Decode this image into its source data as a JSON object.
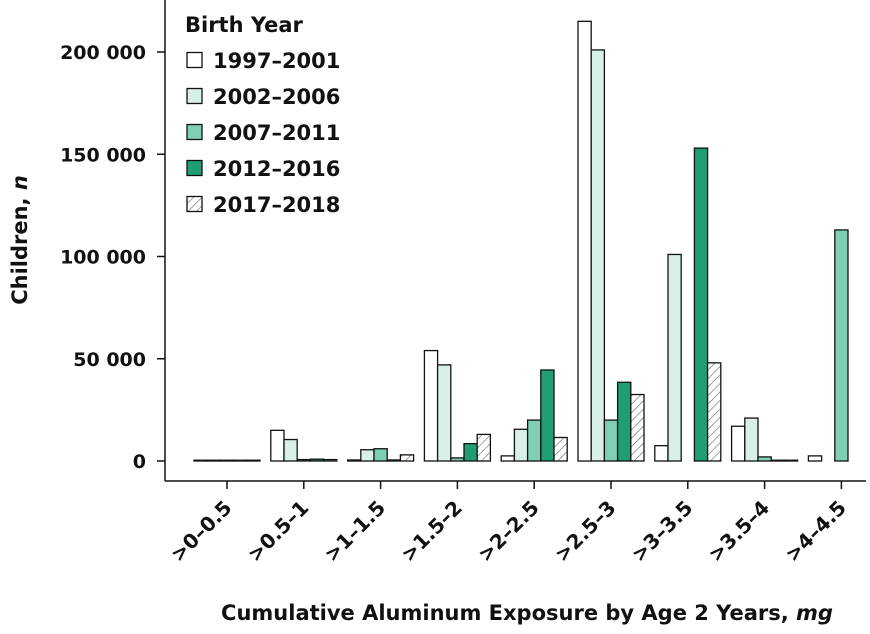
{
  "chart_data": {
    "type": "bar",
    "title": "",
    "xlabel": "Cumulative Aluminum Exposure by Age 2 Years, ",
    "xlabel_unit": "mg",
    "ylabel": "Children, ",
    "ylabel_unit": "n",
    "ylim": [
      0,
      225000
    ],
    "yticks": [
      0,
      50000,
      100000,
      150000,
      200000
    ],
    "ytick_labels": [
      "0",
      "50 000",
      "100 000",
      "150 000",
      "200 000"
    ],
    "categories": [
      ">0–0.5",
      ">0.5–1",
      ">1–1.5",
      ">1.5–2",
      ">2–2.5",
      ">2.5–3",
      ">3–3.5",
      ">3.5–4",
      ">4–4.5"
    ],
    "legend_title": "Birth Year",
    "legend_position": "top-left",
    "grid": false,
    "series": [
      {
        "name": "1997–2001",
        "color": "#ffffff",
        "hatch": false,
        "values": [
          300,
          15000,
          500,
          54000,
          2500,
          215000,
          7500,
          17000,
          2500
        ]
      },
      {
        "name": "2002–2006",
        "color": "#d8f0e8",
        "hatch": false,
        "values": [
          300,
          10500,
          5500,
          47000,
          15500,
          201000,
          101000,
          21000,
          0
        ]
      },
      {
        "name": "2007–2011",
        "color": "#7fcfb3",
        "hatch": false,
        "values": [
          300,
          700,
          6000,
          1500,
          20000,
          20000,
          0,
          2000,
          113000
        ]
      },
      {
        "name": "2012–2016",
        "color": "#1f9e74",
        "hatch": false,
        "values": [
          300,
          900,
          500,
          8500,
          44500,
          38500,
          153000,
          300,
          0
        ]
      },
      {
        "name": "2017–2018",
        "color": "#ffffff",
        "hatch": true,
        "values": [
          300,
          700,
          3000,
          13000,
          11500,
          32500,
          48000,
          300,
          0
        ]
      }
    ]
  }
}
